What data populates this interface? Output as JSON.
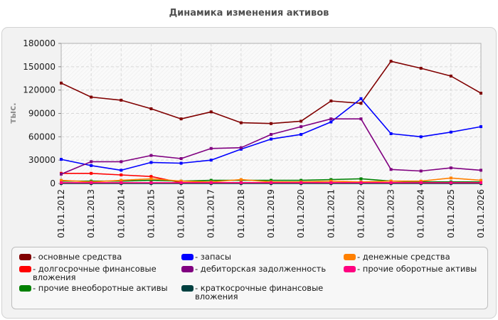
{
  "title": "Динамика изменения активов",
  "chart_data": {
    "type": "line",
    "ylabel": "тыс.",
    "xlabel": "",
    "ylim": [
      0,
      180000
    ],
    "yticks": [
      0,
      30000,
      60000,
      90000,
      120000,
      150000,
      180000
    ],
    "grid": true,
    "legend_position": "bottom",
    "categories": [
      "01.01.2012",
      "01.01.2013",
      "01.01.2014",
      "01.01.2015",
      "01.01.2016",
      "01.01.2017",
      "01.01.2018",
      "01.01.2019",
      "01.01.2020",
      "01.01.2021",
      "01.01.2022",
      "01.01.2023",
      "01.01.2024",
      "01.01.2025",
      "01.01.2026"
    ],
    "series": [
      {
        "name": "основные средства",
        "color": "#800000",
        "values": [
          129000,
          111000,
          107000,
          96000,
          83000,
          92000,
          78000,
          77000,
          80000,
          106000,
          103000,
          157000,
          148000,
          138000,
          116000
        ]
      },
      {
        "name": "долгосрочные финансовые вложения",
        "color": "#ff0000",
        "values": [
          13000,
          13000,
          11000,
          9000,
          1000,
          1000,
          1000,
          1000,
          1000,
          1000,
          1000,
          1000,
          1000,
          1000,
          1000
        ]
      },
      {
        "name": "прочие внеоборотные активы",
        "color": "#008000",
        "values": [
          3000,
          3000,
          3000,
          4000,
          3000,
          4000,
          4000,
          4000,
          4000,
          5000,
          6000,
          3000,
          2000,
          2000,
          2000
        ]
      },
      {
        "name": "запасы",
        "color": "#0000ff",
        "values": [
          31000,
          23000,
          17000,
          27000,
          26000,
          30000,
          44000,
          57000,
          63000,
          79000,
          109000,
          64000,
          60000,
          66000,
          73000
        ]
      },
      {
        "name": "дебиторская задолженность",
        "color": "#800080",
        "values": [
          12000,
          28000,
          28000,
          36000,
          32000,
          45000,
          46000,
          63000,
          73000,
          83000,
          83000,
          18000,
          16000,
          20000,
          17000
        ]
      },
      {
        "name": "краткосрочные финансовые вложения",
        "color": "#004040",
        "values": [
          0,
          0,
          0,
          0,
          0,
          0,
          0,
          0,
          0,
          0,
          0,
          0,
          0,
          0,
          0
        ]
      },
      {
        "name": "денежные средства",
        "color": "#ff8000",
        "values": [
          4000,
          2000,
          4000,
          6000,
          3000,
          2000,
          5000,
          2000,
          2000,
          3000,
          2000,
          3000,
          3000,
          7000,
          4000
        ]
      },
      {
        "name": "прочие оборотные активы",
        "color": "#ff0080",
        "values": [
          1000,
          1000,
          1000,
          1000,
          1000,
          1000,
          1000,
          1000,
          1000,
          1000,
          1000,
          1000,
          1000,
          1000,
          1000
        ]
      }
    ]
  }
}
